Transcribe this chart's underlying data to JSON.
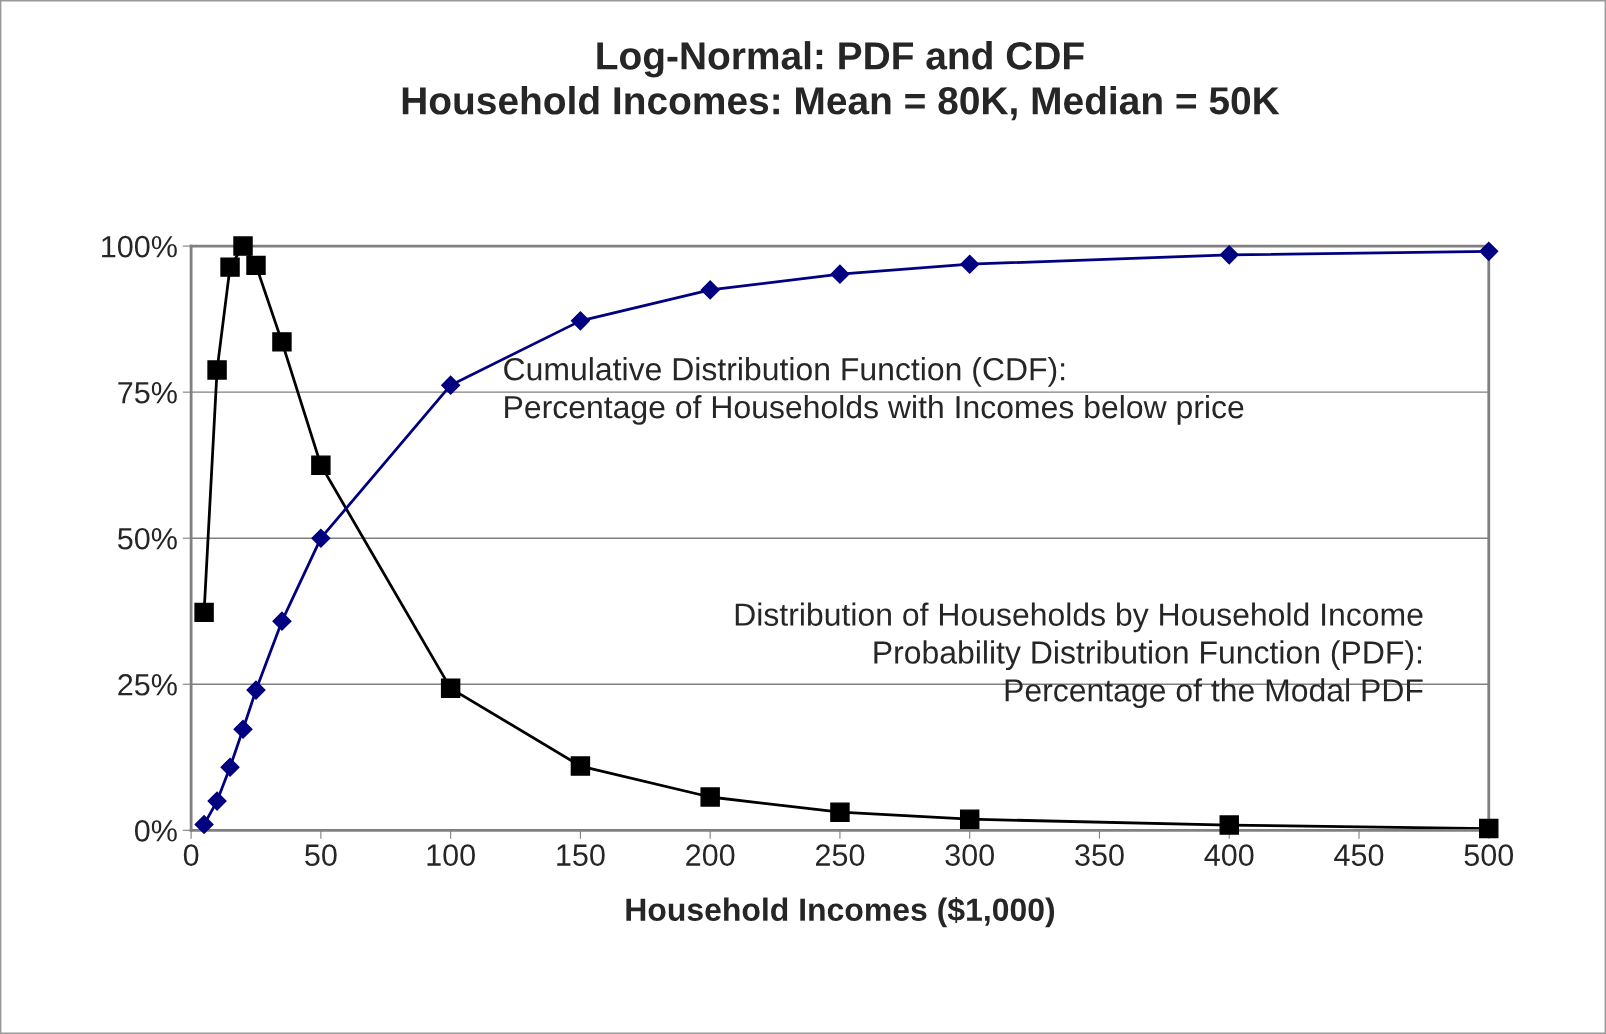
{
  "chart_data": {
    "type": "line",
    "title": "Log-Normal: PDF and CDF\nHousehold Incomes: Mean = 80K, Median = 50K",
    "xlabel": "Household Incomes ($1,000)",
    "xlim": [
      0,
      500
    ],
    "xticks": [
      0,
      50,
      100,
      150,
      200,
      250,
      300,
      350,
      400,
      450,
      500
    ],
    "ylim": [
      0,
      100
    ],
    "yticks": [
      {
        "value": 0,
        "label": "0%"
      },
      {
        "value": 25,
        "label": "25%"
      },
      {
        "value": 50,
        "label": "50%"
      },
      {
        "value": 75,
        "label": "75%"
      },
      {
        "value": 100,
        "label": "100%"
      }
    ],
    "grid": "y",
    "legend": false,
    "series": [
      {
        "color": "#000000",
        "marker": "square",
        "x": [
          5,
          10,
          15,
          20,
          25,
          35,
          50,
          100,
          150,
          200,
          250,
          300,
          400,
          500
        ],
        "values": [
          37.3,
          78.8,
          96.4,
          100,
          96.7,
          83.6,
          62.5,
          24.3,
          11.0,
          5.7,
          3.1,
          1.9,
          0.9,
          0.3
        ]
      },
      {
        "color": "#000080",
        "marker": "diamond",
        "x": [
          5,
          10,
          15,
          20,
          25,
          35,
          50,
          100,
          150,
          200,
          250,
          300,
          400,
          500
        ],
        "values": [
          1.0,
          5.0,
          10.8,
          17.3,
          24.0,
          35.8,
          50,
          76.2,
          87.2,
          92.5,
          95.2,
          96.9,
          98.5,
          99.1
        ]
      }
    ],
    "annotations": [
      "Cumulative Distribution Function (CDF):\nPercentage of Households with Incomes below price",
      "Distribution of Households by Household Income\nProbability Distribution Function (PDF):\nPercentage of the Modal PDF"
    ]
  }
}
